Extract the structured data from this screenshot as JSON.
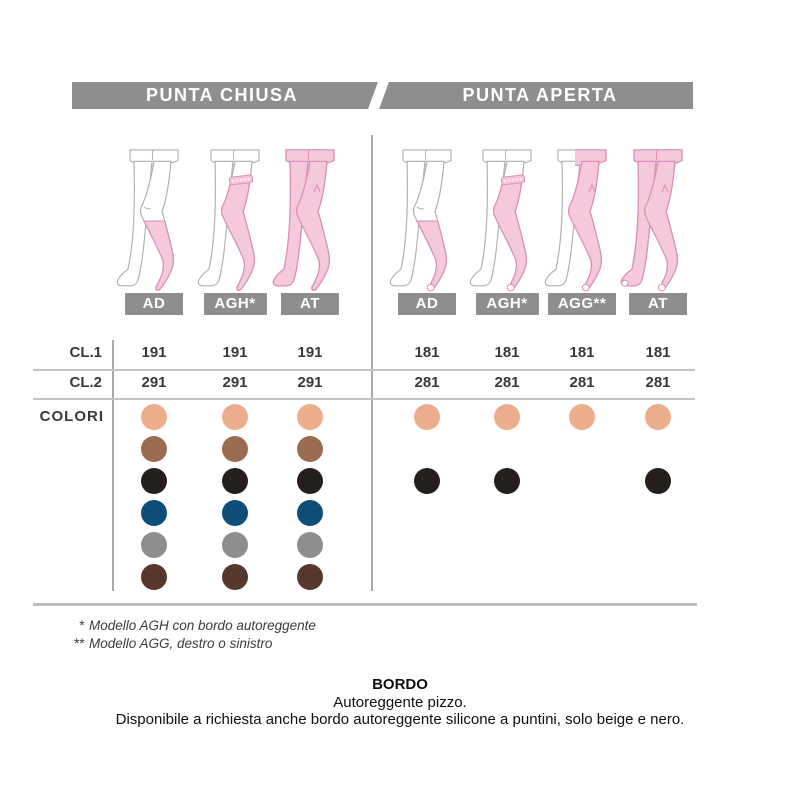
{
  "header": {
    "left": "PUNTA CHIUSA",
    "right": "PUNTA APERTA"
  },
  "row_labels": {
    "cl1": "CL.1",
    "cl2": "CL.2",
    "colors": "COLORI"
  },
  "palette": [
    {
      "name": "beige",
      "hex": "#ebad8c"
    },
    {
      "name": "brown",
      "hex": "#9a6b51"
    },
    {
      "name": "black",
      "hex": "#241e1c"
    },
    {
      "name": "blue",
      "hex": "#0f4e79"
    },
    {
      "name": "grey",
      "hex": "#8e8e90"
    },
    {
      "name": "dark-brown",
      "hex": "#56382c"
    }
  ],
  "sections": [
    {
      "name": "punta-chiusa",
      "models": [
        {
          "code": "AD",
          "garment": "knee",
          "toe": "closed",
          "cl1": "191",
          "cl2": "291",
          "colors": [
            true,
            true,
            true,
            true,
            true,
            true
          ]
        },
        {
          "code": "AGH*",
          "garment": "thigh",
          "toe": "closed",
          "cl1": "191",
          "cl2": "291",
          "colors": [
            true,
            true,
            true,
            true,
            true,
            true
          ]
        },
        {
          "code": "AT",
          "garment": "tights",
          "toe": "closed",
          "cl1": "191",
          "cl2": "291",
          "colors": [
            true,
            true,
            true,
            true,
            true,
            true
          ]
        }
      ]
    },
    {
      "name": "punta-aperta",
      "models": [
        {
          "code": "AD",
          "garment": "knee",
          "toe": "open",
          "cl1": "181",
          "cl2": "281",
          "colors": [
            true,
            false,
            true,
            false,
            false,
            false
          ]
        },
        {
          "code": "AGH*",
          "garment": "thigh",
          "toe": "open",
          "cl1": "181",
          "cl2": "281",
          "colors": [
            true,
            false,
            true,
            false,
            false,
            false
          ]
        },
        {
          "code": "AGG**",
          "garment": "single",
          "toe": "open",
          "cl1": "181",
          "cl2": "281",
          "colors": [
            true,
            false,
            false,
            false,
            false,
            false
          ]
        },
        {
          "code": "AT",
          "garment": "tights",
          "toe": "open",
          "cl1": "181",
          "cl2": "281",
          "colors": [
            true,
            false,
            true,
            false,
            false,
            false
          ]
        }
      ]
    }
  ],
  "footnotes": [
    {
      "marker": "*",
      "text": "Modello AGH con bordo autoreggente"
    },
    {
      "marker": "**",
      "text": "Modello AGG, destro o sinistro"
    }
  ],
  "bordo": {
    "title": "BORDO",
    "line1": "Autoreggente pizzo.",
    "line2": "Disponibile a richiesta anche bordo autoreggente silicone a puntini, solo beige e nero."
  },
  "accent_colors": {
    "bar_grey": "#8e8e8e",
    "garment_pink": "#f5c8dc",
    "garment_outline": "#da90ba"
  }
}
